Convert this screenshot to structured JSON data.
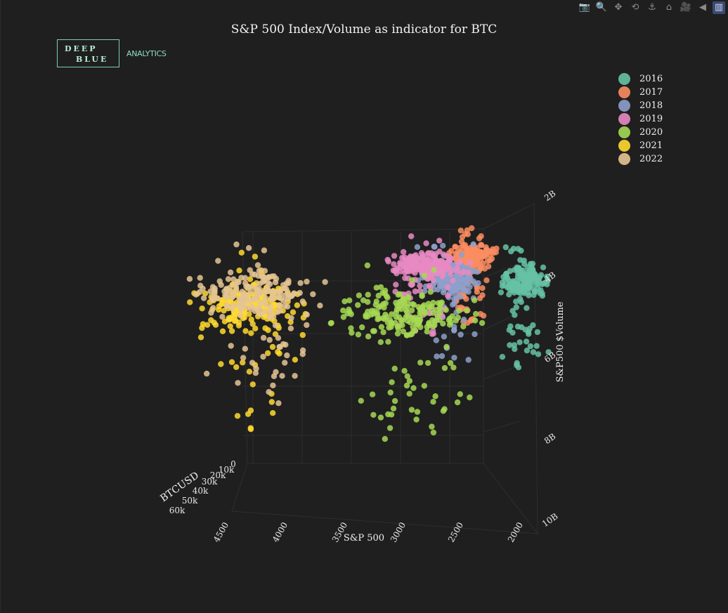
{
  "title": "S&P 500 Index/Volume as indicator for BTC",
  "logo": {
    "line1": "DEEP",
    "line2": "BLUE",
    "sub": "ANALYTICS"
  },
  "modebar": {
    "buttons": [
      {
        "name": "camera-icon",
        "glyph": "📷"
      },
      {
        "name": "zoom-icon",
        "glyph": "🔍"
      },
      {
        "name": "pan-icon",
        "glyph": "✥"
      },
      {
        "name": "orbit-rotation-icon",
        "glyph": "⟲"
      },
      {
        "name": "turntable-rotation-icon",
        "glyph": "⚓"
      },
      {
        "name": "reset-camera-home-icon",
        "glyph": "⌂"
      },
      {
        "name": "reset-camera-last-icon",
        "glyph": "🎥"
      },
      {
        "name": "hover-toggle-icon",
        "glyph": "◀"
      },
      {
        "name": "plotly-logo-icon",
        "glyph": "▥"
      }
    ]
  },
  "chart_data": {
    "type": "scatter",
    "title": "S&P 500 Index/Volume as indicator for BTC",
    "axes": {
      "x": {
        "label": "S&P 500",
        "ticks": [
          "4500",
          "4000",
          "3500",
          "3000",
          "2500",
          "2000"
        ]
      },
      "y": {
        "label": "BTCUSD",
        "ticks": [
          "0",
          "10k",
          "20k",
          "30k",
          "40k",
          "50k",
          "60k"
        ]
      },
      "z": {
        "label": "S&P500 $Volume",
        "ticks": [
          "2B",
          "4B",
          "6B",
          "8B",
          "10B"
        ]
      }
    },
    "legend_position": "top-right",
    "series": [
      {
        "name": "2016",
        "color": "#66c2a5",
        "sp500_range": [
          1830,
          2270
        ],
        "volume_range": [
          3.0,
          6.0
        ],
        "btc_range": [
          360,
          980
        ]
      },
      {
        "name": "2017",
        "color": "#fc8d62",
        "sp500_range": [
          2240,
          2690
        ],
        "volume_range": [
          2.6,
          5.0
        ],
        "btc_range": [
          780,
          19500
        ]
      },
      {
        "name": "2018",
        "color": "#8da0cb",
        "sp500_range": [
          2350,
          2930
        ],
        "volume_range": [
          3.0,
          5.8
        ],
        "btc_range": [
          3200,
          17000
        ]
      },
      {
        "name": "2019",
        "color": "#e78ac3",
        "sp500_range": [
          2450,
          3240
        ],
        "volume_range": [
          2.8,
          5.2
        ],
        "btc_range": [
          3400,
          13000
        ]
      },
      {
        "name": "2020",
        "color": "#a6d854",
        "sp500_range": [
          2240,
          3760
        ],
        "volume_range": [
          3.4,
          7.8
        ],
        "btc_range": [
          4900,
          29000
        ]
      },
      {
        "name": "2021",
        "color": "#ffd92f",
        "sp500_range": [
          3700,
          4800
        ],
        "volume_range": [
          3.2,
          7.5
        ],
        "btc_range": [
          29000,
          67000
        ]
      },
      {
        "name": "2022",
        "color": "#e5c494",
        "sp500_range": [
          3580,
          4800
        ],
        "volume_range": [
          3.0,
          7.0
        ],
        "btc_range": [
          15700,
          47000
        ]
      }
    ]
  }
}
